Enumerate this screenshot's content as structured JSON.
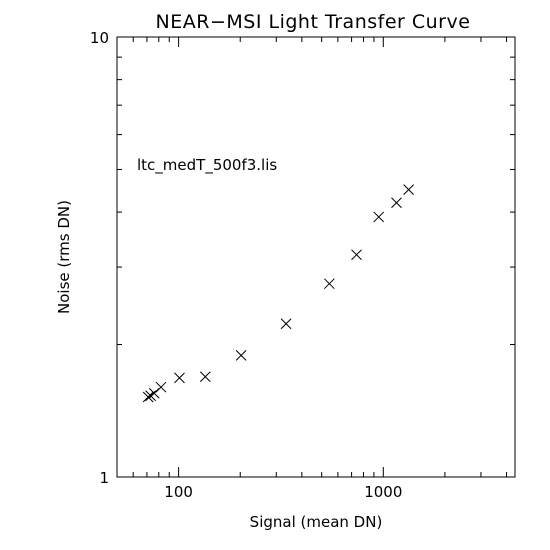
{
  "chart_data": {
    "type": "scatter",
    "title": "NEAR−MSI Light Transfer Curve",
    "xlabel": "Signal (mean DN)",
    "ylabel": "Noise (rms DN)",
    "xscale": "log",
    "yscale": "log",
    "xlim": [
      50,
      4400
    ],
    "ylim": [
      1,
      10
    ],
    "xticks": [
      100,
      1000
    ],
    "xtick_labels": [
      "100",
      "1000"
    ],
    "yticks": [
      1,
      10
    ],
    "ytick_labels": [
      "1",
      "10"
    ],
    "grid": false,
    "marker": "x",
    "annotation": "ltc_medT_500f3.lis",
    "x": [
      71,
      73,
      76,
      82,
      101,
      135,
      202,
      335,
      545,
      740,
      950,
      1160,
      1330
    ],
    "y": [
      1.52,
      1.53,
      1.55,
      1.6,
      1.68,
      1.69,
      1.89,
      2.23,
      2.75,
      3.2,
      3.9,
      4.2,
      4.5
    ]
  }
}
